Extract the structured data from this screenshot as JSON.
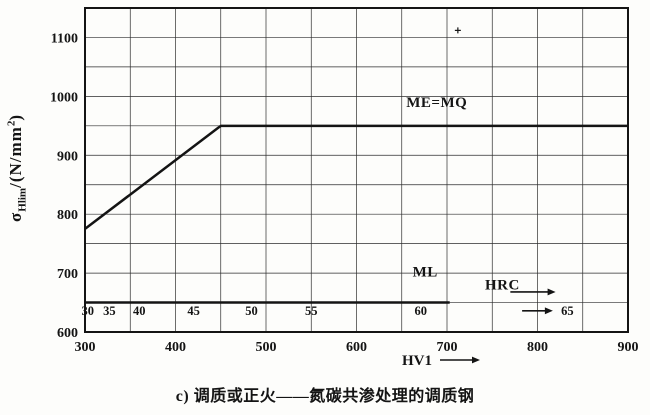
{
  "page": {
    "background": "#fdfdfb",
    "caption": "c) 调质或正火——氮碳共渗处理的调质钢"
  },
  "axis_y_label": {
    "symbol": "σ",
    "subscript": "Hlim",
    "mid": "/(N/mm",
    "sup": "2",
    "end": ")"
  },
  "axis_x_label": {
    "text": "HV1"
  },
  "chart_data": {
    "type": "line",
    "title": "",
    "xlabel": "HV1",
    "ylabel": "σHlim/(N/mm²)",
    "xlim": [
      300,
      900
    ],
    "ylim": [
      600,
      1150
    ],
    "x_major_ticks": [
      300,
      400,
      500,
      600,
      700,
      800,
      900
    ],
    "y_major_ticks": [
      600,
      700,
      800,
      900,
      1000,
      1100
    ],
    "grid_step_x": 50,
    "grid_step_y": 50,
    "grid": true,
    "legend": "none",
    "series": [
      {
        "id": "me-mq",
        "name": "ME=MQ",
        "points": [
          [
            300,
            775
          ],
          [
            450,
            950
          ],
          [
            900,
            950
          ]
        ],
        "label_pos": [
          655,
          982
        ]
      },
      {
        "id": "ml",
        "name": "ML",
        "points": [
          [
            300,
            650
          ],
          [
            703,
            650
          ]
        ],
        "label_pos": [
          662,
          694
        ]
      }
    ],
    "hrc_scale": {
      "label": "HRC",
      "label_pos": [
        742,
        672
      ],
      "label_arrow": {
        "from": [
          770,
          668
        ],
        "to": [
          820,
          668
        ]
      },
      "values": [
        "30",
        "35",
        "40",
        "45",
        "50",
        "55",
        "60",
        "65"
      ],
      "positions_hv": [
        303,
        327,
        360,
        420,
        484,
        550,
        671,
        833
      ],
      "value_sigma": 629,
      "value_arrow": {
        "from": [
          783,
          636
        ],
        "to": [
          817,
          636
        ]
      }
    },
    "artifact_mark_hv_sigma": [
      712,
      1112
    ]
  }
}
